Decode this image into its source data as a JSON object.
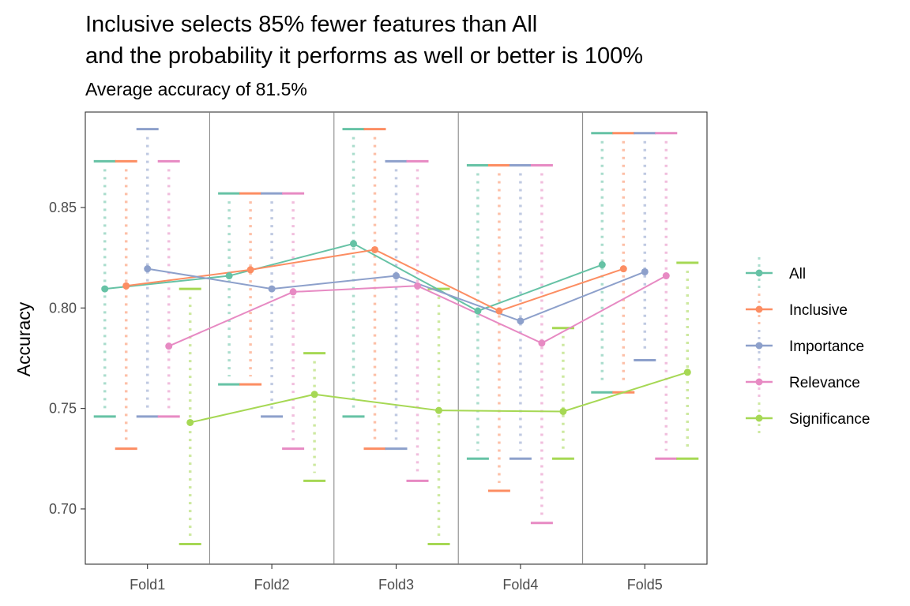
{
  "chart_data": {
    "type": "line",
    "title_line1": "Inclusive selects 85% fewer features than All",
    "title_line2": "and the probability it performs as well or better is 100%",
    "subtitle": "Average accuracy of 81.5%",
    "xlabel": "",
    "ylabel": "Accuracy",
    "categories": [
      "Fold1",
      "Fold2",
      "Fold3",
      "Fold4",
      "Fold5"
    ],
    "ylim": [
      0.6725,
      0.8975
    ],
    "yticks": [
      0.7,
      0.75,
      0.8,
      0.85
    ],
    "ytick_labels": [
      "0.70",
      "0.75",
      "0.80",
      "0.85"
    ],
    "grid": false,
    "legend_position": "right",
    "series": [
      {
        "name": "All",
        "color": "#66c2a5",
        "values": [
          0.8095,
          0.816,
          0.832,
          0.7985,
          0.8215
        ],
        "upper": [
          0.873,
          0.857,
          0.889,
          0.871,
          0.887
        ],
        "lower": [
          0.746,
          0.762,
          0.746,
          0.725,
          0.758
        ]
      },
      {
        "name": "Inclusive",
        "color": "#fc8d62",
        "values": [
          0.811,
          0.819,
          0.829,
          0.7985,
          0.8195
        ],
        "upper": [
          0.873,
          0.857,
          0.889,
          0.871,
          0.887
        ],
        "lower": [
          0.73,
          0.762,
          0.73,
          0.709,
          0.758
        ]
      },
      {
        "name": "Importance",
        "color": "#8da0cb",
        "values": [
          0.8195,
          0.8095,
          0.816,
          0.7935,
          0.818
        ],
        "upper": [
          0.889,
          0.857,
          0.873,
          0.871,
          0.887
        ],
        "lower": [
          0.746,
          0.746,
          0.73,
          0.725,
          0.774
        ]
      },
      {
        "name": "Relevance",
        "color": "#e78ac3",
        "values": [
          0.781,
          0.808,
          0.811,
          0.7825,
          0.816
        ],
        "upper": [
          0.873,
          0.857,
          0.873,
          0.871,
          0.887
        ],
        "lower": [
          0.746,
          0.73,
          0.714,
          0.693,
          0.725
        ]
      },
      {
        "name": "Significance",
        "color": "#a6d854",
        "values": [
          0.743,
          0.757,
          0.749,
          0.7485,
          0.768
        ],
        "upper": [
          0.8095,
          0.7775,
          0.8095,
          0.79,
          0.8225
        ],
        "lower": [
          0.6825,
          0.714,
          0.6825,
          0.725,
          0.725
        ]
      }
    ]
  }
}
